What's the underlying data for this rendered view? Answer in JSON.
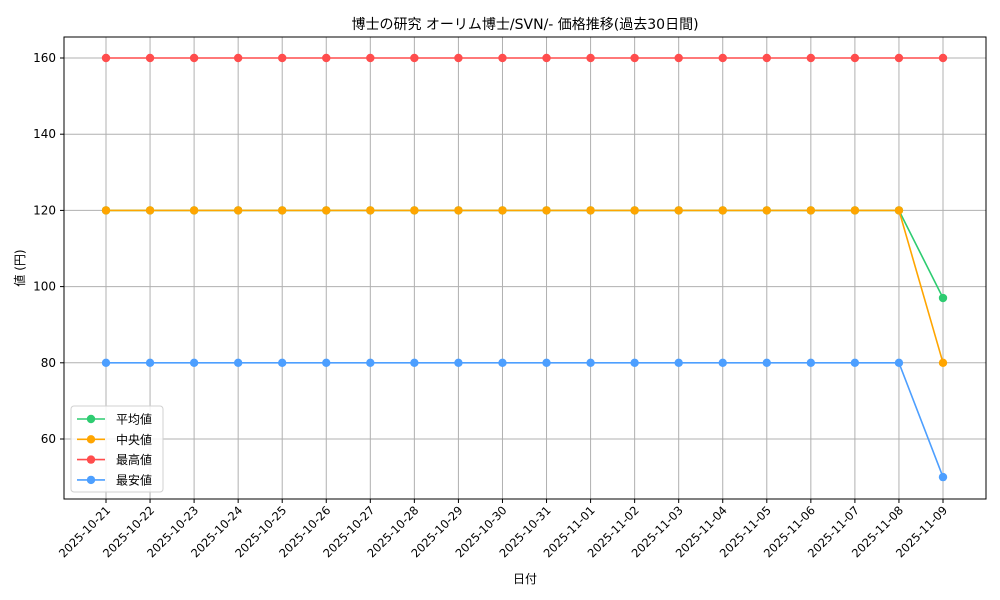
{
  "chart_data": {
    "type": "line",
    "title": "博士の研究 オーリム博士/SVN/- 価格推移(過去30日間)",
    "xlabel": "日付",
    "ylabel": "値 (円)",
    "ylim": [
      45,
      165
    ],
    "yticks": [
      60,
      80,
      100,
      120,
      140,
      160
    ],
    "grid": true,
    "legend_position": "lower left",
    "categories": [
      "2025-10-21",
      "2025-10-22",
      "2025-10-23",
      "2025-10-24",
      "2025-10-25",
      "2025-10-26",
      "2025-10-27",
      "2025-10-28",
      "2025-10-29",
      "2025-10-30",
      "2025-10-31",
      "2025-11-01",
      "2025-11-02",
      "2025-11-03",
      "2025-11-04",
      "2025-11-05",
      "2025-11-06",
      "2025-11-07",
      "2025-11-08",
      "2025-11-09"
    ],
    "series": [
      {
        "name": "平均値",
        "color": "#2ecc71",
        "values": [
          120,
          120,
          120,
          120,
          120,
          120,
          120,
          120,
          120,
          120,
          120,
          120,
          120,
          120,
          120,
          120,
          120,
          120,
          120,
          97
        ]
      },
      {
        "name": "中央値",
        "color": "#ffa500",
        "values": [
          120,
          120,
          120,
          120,
          120,
          120,
          120,
          120,
          120,
          120,
          120,
          120,
          120,
          120,
          120,
          120,
          120,
          120,
          120,
          80
        ]
      },
      {
        "name": "最高値",
        "color": "#ff4d4d",
        "values": [
          160,
          160,
          160,
          160,
          160,
          160,
          160,
          160,
          160,
          160,
          160,
          160,
          160,
          160,
          160,
          160,
          160,
          160,
          160,
          160
        ]
      },
      {
        "name": "最安値",
        "color": "#4d9fff",
        "values": [
          80,
          80,
          80,
          80,
          80,
          80,
          80,
          80,
          80,
          80,
          80,
          80,
          80,
          80,
          80,
          80,
          80,
          80,
          80,
          50
        ]
      }
    ]
  }
}
